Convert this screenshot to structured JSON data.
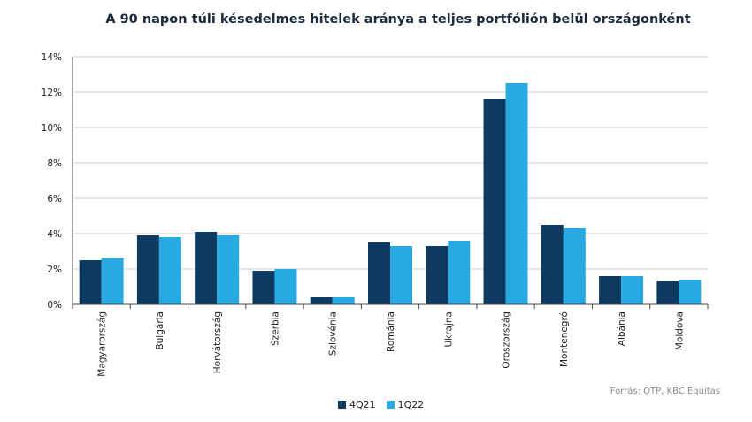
{
  "chart_data": {
    "type": "bar",
    "title": "A 90 napon túli késedelmes hitelek aránya a teljes portfólión belül országonként",
    "categories": [
      "Magyarország",
      "Bulgária",
      "Horvátország",
      "Szerbia",
      "Szlovénia",
      "Románia",
      "Ukrajna",
      "Oroszország",
      "Montenegró",
      "Albánia",
      "Moldova"
    ],
    "series": [
      {
        "name": "4Q21",
        "color": "#0e3a5f",
        "values": [
          2.5,
          3.9,
          4.1,
          1.9,
          0.4,
          3.5,
          3.3,
          11.6,
          4.5,
          1.6,
          1.3
        ]
      },
      {
        "name": "1Q22",
        "color": "#29a9e1",
        "values": [
          2.6,
          3.8,
          3.9,
          2.0,
          0.4,
          3.3,
          3.6,
          12.5,
          4.3,
          1.6,
          1.4
        ]
      }
    ],
    "ylim": [
      0,
      14
    ],
    "yticks": [
      0,
      2,
      4,
      6,
      8,
      10,
      12,
      14
    ],
    "ytick_suffix": "%",
    "grid": true,
    "legend_position": "bottom",
    "xlabel": "",
    "ylabel": ""
  },
  "source_note": "Forrás: OTP, KBC Equitas"
}
